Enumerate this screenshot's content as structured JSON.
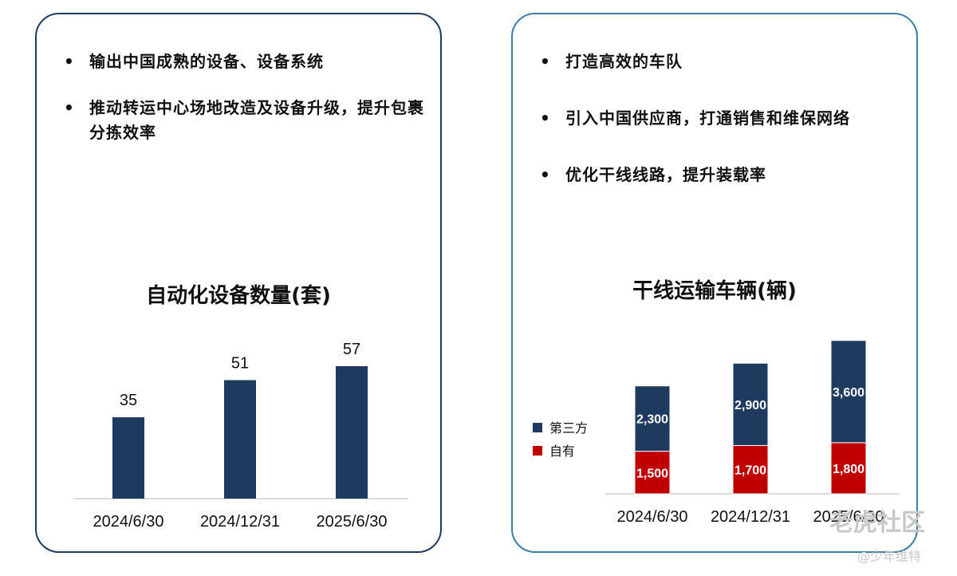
{
  "left_panel": {
    "bullets": [
      "输出中国成熟的设备、设备系统",
      "推动转运中心场地改造及设备升级，提升包裹分拣效率"
    ]
  },
  "right_panel": {
    "bullets": [
      "打造高效的车队",
      "引入中国供应商，打通销售和维保网络",
      "优化干线线路，提升装载率"
    ]
  },
  "chart_data": [
    {
      "type": "bar",
      "title": "自动化设备数量(套)",
      "categories": [
        "2024/6/30",
        "2024/12/31",
        "2025/6/30"
      ],
      "values": [
        35,
        51,
        57
      ],
      "ylim": [
        0,
        80
      ],
      "color": "#1e3a5f",
      "grid": false
    },
    {
      "type": "bar",
      "stacked": true,
      "title": "干线运输车辆(辆)",
      "categories": [
        "2024/6/30",
        "2024/12/31",
        "2025/6/30"
      ],
      "series": [
        {
          "name": "自有",
          "values": [
            1500,
            1700,
            1800
          ],
          "color": "#c00000",
          "labels": [
            "1,500",
            "1,700",
            "1,800"
          ]
        },
        {
          "name": "第三方",
          "values": [
            2300,
            2900,
            3600
          ],
          "color": "#1e3a5f",
          "labels": [
            "2,300",
            "2,900",
            "3,600"
          ]
        }
      ],
      "ylim": [
        0,
        6000
      ],
      "legend": "left",
      "grid": false
    }
  ],
  "watermark": {
    "brand": "老虎社区",
    "user": "@少年维特"
  }
}
